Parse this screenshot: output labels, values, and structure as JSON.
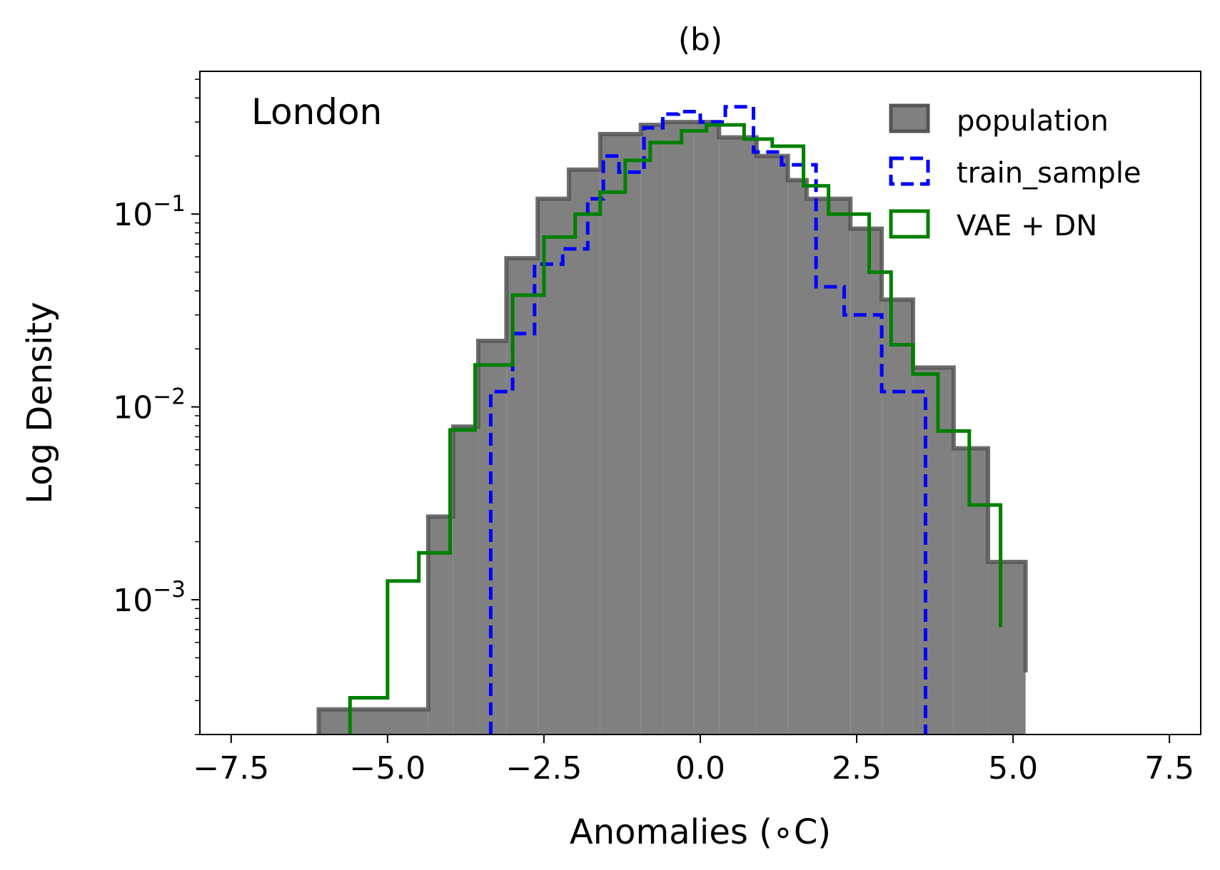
{
  "chart_data": {
    "type": "histogram-step",
    "title": "(b)",
    "annotation": "London",
    "xlabel": "Anomalies (∘C)",
    "ylabel": "Log Density",
    "yscale": "log",
    "xlim": [
      -8.0,
      8.0
    ],
    "ylim": [
      0.0002,
      0.55
    ],
    "x_ticks": [
      -7.5,
      -5.0,
      -2.5,
      0.0,
      2.5,
      5.0,
      7.5
    ],
    "x_tick_labels": [
      "−7.5",
      "−5.0",
      "−2.5",
      "0.0",
      "2.5",
      "5.0",
      "7.5"
    ],
    "y_major_ticks": [
      {
        "value": 0.1,
        "base": "10",
        "exp": "−1"
      },
      {
        "value": 0.01,
        "base": "10",
        "exp": "−2"
      },
      {
        "value": 0.001,
        "base": "10",
        "exp": "−3"
      }
    ],
    "legend_position": "top-right",
    "series": [
      {
        "name": "population",
        "style": "filled",
        "color": "#808080",
        "edge_color": "#555555",
        "edges": [
          -6.1,
          -4.35,
          -3.95,
          -3.55,
          -3.1,
          -2.6,
          -2.1,
          -1.6,
          -0.95,
          -0.6,
          -0.1,
          0.3,
          0.9,
          1.4,
          1.7,
          2.4,
          2.9,
          3.4,
          4.05,
          4.6,
          5.2
        ],
        "values": [
          0.00027,
          0.0027,
          0.0079,
          0.022,
          0.059,
          0.12,
          0.17,
          0.26,
          0.29,
          0.3,
          0.3,
          0.25,
          0.2,
          0.15,
          0.12,
          0.084,
          0.036,
          0.016,
          0.0061,
          0.00157,
          0.00042
        ]
      },
      {
        "name": "train_sample",
        "style": "dashed",
        "color": "#0000ff",
        "edges": [
          -3.35,
          -3.0,
          -2.65,
          -2.2,
          -1.8,
          -1.55,
          -1.3,
          -0.9,
          -0.6,
          -0.35,
          0.0,
          0.4,
          0.85,
          1.3,
          1.85,
          2.3,
          2.9,
          3.6
        ],
        "values": [
          0.012,
          0.024,
          0.055,
          0.066,
          0.12,
          0.2,
          0.165,
          0.28,
          0.33,
          0.34,
          0.3,
          0.36,
          0.21,
          0.18,
          0.042,
          0.03,
          0.012
        ]
      },
      {
        "name": "VAE + DN",
        "style": "line",
        "color": "#008000",
        "edges": [
          -5.6,
          -5.0,
          -4.5,
          -4.0,
          -3.6,
          -3.0,
          -2.5,
          -2.0,
          -1.6,
          -1.2,
          -0.8,
          -0.3,
          0.1,
          0.7,
          1.15,
          1.65,
          2.05,
          2.7,
          3.05,
          3.4,
          3.8,
          4.3,
          4.8
        ],
        "values": [
          0.00031,
          0.00125,
          0.00175,
          0.0076,
          0.0165,
          0.038,
          0.076,
          0.1,
          0.13,
          0.19,
          0.235,
          0.27,
          0.29,
          0.245,
          0.225,
          0.14,
          0.1,
          0.05,
          0.021,
          0.0148,
          0.0075,
          0.0031,
          0.00072
        ]
      }
    ]
  }
}
